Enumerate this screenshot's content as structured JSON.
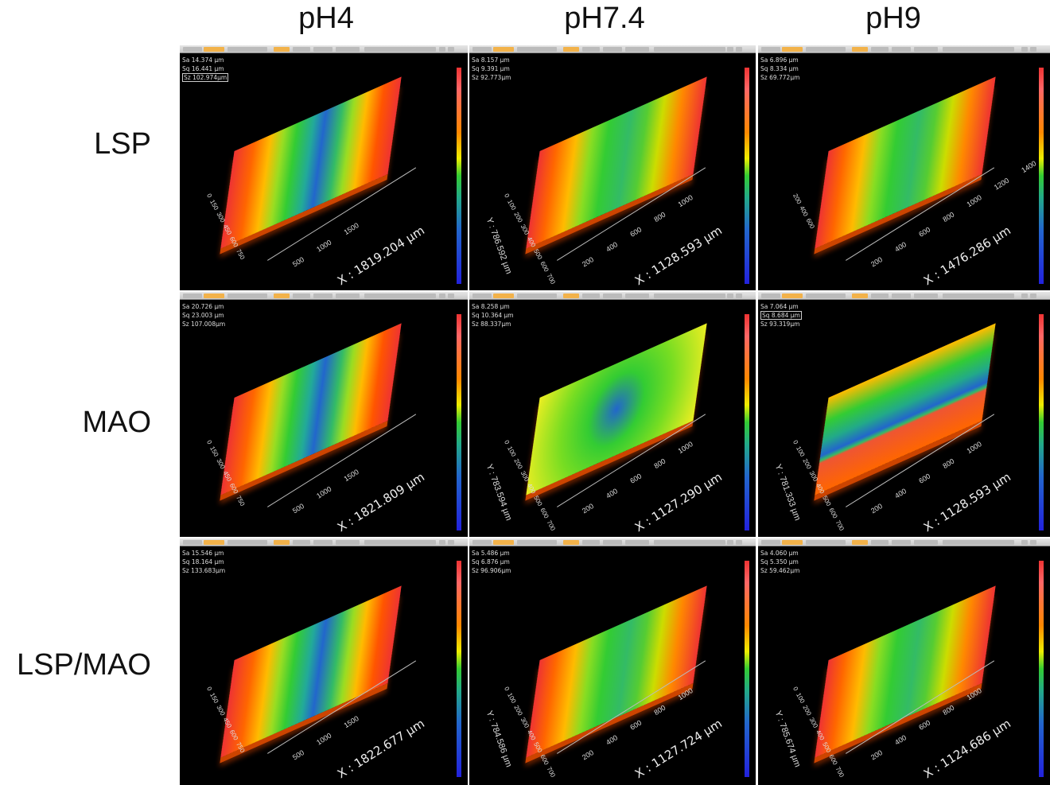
{
  "columns": [
    "pH4",
    "pH7.4",
    "pH9"
  ],
  "rows": [
    "LSP",
    "MAO",
    "LSP/MAO"
  ],
  "colormap": [
    "#e33",
    "#f80",
    "#ee0",
    "#3c3",
    "#26c"
  ],
  "panels": [
    [
      {
        "sa": "Sa 14.374  µm",
        "sq": "Sq 16.441  µm",
        "sz": "Sz 102.974µm",
        "boxed": "sz",
        "x": "X : 1819.204 µm",
        "y": "",
        "xt": "500 1000 1500",
        "yt": "0 150 300 450 600 750",
        "style": "wide"
      },
      {
        "sa": "Sa 8.157  µm",
        "sq": "Sq 9.391  µm",
        "sz": "Sz 92.773µm",
        "boxed": "",
        "x": "X : 1128.593 µm",
        "y": "Y : 786.592 µm",
        "xt": "200 400 600 800 1000",
        "yt": "0 100 200 300 400 500 600 700",
        "style": "band"
      },
      {
        "sa": "Sa 6.896  µm",
        "sq": "Sq 8.334  µm",
        "sz": "Sz 69.772µm",
        "boxed": "",
        "x": "X : 1476.286 µm",
        "y": "",
        "xt": "200 400 600 800 1000 1200 1400",
        "yt": "200 400 600",
        "style": "band"
      }
    ],
    [
      {
        "sa": "Sa 20.726  µm",
        "sq": "Sq 23.003  µm",
        "sz": "Sz 107.008µm",
        "boxed": "",
        "x": "X : 1821.809 µm",
        "y": "",
        "xt": "500 1000 1500",
        "yt": "0 150 300 450 600 750",
        "style": "wide"
      },
      {
        "sa": "Sa 8.258  µm",
        "sq": "Sq 10.364  µm",
        "sz": "Sz 88.337µm",
        "boxed": "",
        "x": "X : 1127.290 µm",
        "y": "Y : 783.594 µm",
        "xt": "200 400 600 800 1000",
        "yt": "0 100 200 300 400 500 600 700",
        "style": "flat"
      },
      {
        "sa": "Sa 7.064  µm",
        "sq": "Sq 8.684  µm",
        "sz": "Sz 93.319µm",
        "boxed": "sq",
        "x": "X : 1128.593 µm",
        "y": "Y : 781.333 µm",
        "xt": "200 400 600 800 1000",
        "yt": "0 100 200 300 400 500 600 700",
        "style": "half"
      }
    ],
    [
      {
        "sa": "Sa 15.546  µm",
        "sq": "Sq 18.164  µm",
        "sz": "Sz 133.683µm",
        "boxed": "",
        "x": "X : 1822.677 µm",
        "y": "",
        "xt": "500 1000 1500",
        "yt": "0 150 300 450 600 750",
        "style": "wide"
      },
      {
        "sa": "Sa 5.486  µm",
        "sq": "Sq 6.876  µm",
        "sz": "Sz 96.906µm",
        "boxed": "",
        "x": "X : 1127.724 µm",
        "y": "Y : 784.586 µm",
        "xt": "200 400 600 800 1000",
        "yt": "0 100 200 300 400 500 600 700",
        "style": "band"
      },
      {
        "sa": "Sa 4.060  µm",
        "sq": "Sq 5.350  µm",
        "sz": "Sz 59.462µm",
        "boxed": "",
        "x": "X : 1124.686 µm",
        "y": "Y : 785.674 µm",
        "xt": "200 400 600 800 1000",
        "yt": "0 100 200 300 400 500 600 700",
        "style": "band"
      }
    ]
  ]
}
